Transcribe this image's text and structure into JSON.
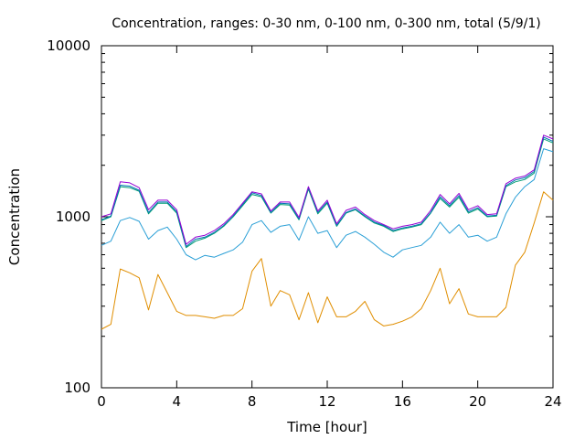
{
  "chart_data": {
    "type": "line",
    "title": "Concentration, ranges: 0-30 nm, 0-100 nm, 0-300 nm, total (5/9/1)",
    "xlabel": "Time [hour]",
    "ylabel": "Concentration",
    "xlim": [
      0,
      24
    ],
    "ylim": [
      100,
      10000
    ],
    "yscale": "log",
    "grid": false,
    "legend": "none",
    "x_ticks": [
      0,
      4,
      8,
      12,
      16,
      20,
      24
    ],
    "x_tick_labels": [
      "0",
      "4",
      "8",
      "12",
      "16",
      "20",
      "24"
    ],
    "y_ticks": [
      100,
      1000,
      10000
    ],
    "y_tick_labels": [
      "100",
      "1000",
      "10000"
    ],
    "x": [
      0,
      0.5,
      1,
      1.5,
      2,
      2.5,
      3,
      3.5,
      4,
      4.5,
      5,
      5.5,
      6,
      6.5,
      7,
      7.5,
      8,
      8.5,
      9,
      9.5,
      10,
      10.5,
      11,
      11.5,
      12,
      12.5,
      13,
      13.5,
      14,
      14.5,
      15,
      15.5,
      16,
      16.5,
      17,
      17.5,
      18,
      18.5,
      19,
      19.5,
      20,
      20.5,
      21,
      21.5,
      22,
      22.5,
      23,
      23.5,
      24
    ],
    "series": [
      {
        "color": "#e08e00",
        "values": [
          220,
          235,
          495,
          470,
          440,
          285,
          460,
          360,
          280,
          265,
          265,
          260,
          255,
          265,
          265,
          290,
          480,
          570,
          300,
          370,
          350,
          250,
          360,
          240,
          340,
          260,
          260,
          280,
          320,
          250,
          230,
          235,
          245,
          260,
          290,
          370,
          500,
          310,
          380,
          270,
          260,
          260,
          260,
          295,
          520,
          620,
          920,
          1400,
          1250
        ]
      },
      {
        "color": "#2a9fd6",
        "values": [
          680,
          720,
          950,
          990,
          940,
          740,
          830,
          870,
          740,
          600,
          560,
          595,
          580,
          610,
          640,
          710,
          900,
          950,
          810,
          880,
          900,
          730,
          1000,
          800,
          830,
          660,
          780,
          820,
          760,
          690,
          620,
          580,
          640,
          660,
          680,
          760,
          930,
          800,
          900,
          760,
          780,
          720,
          760,
          1040,
          1300,
          1500,
          1650,
          2500,
          2400
        ]
      },
      {
        "color": "#009e73",
        "values": [
          950,
          1000,
          1500,
          1480,
          1410,
          1040,
          1200,
          1200,
          1050,
          660,
          720,
          750,
          800,
          880,
          1000,
          1160,
          1350,
          1310,
          1050,
          1180,
          1170,
          960,
          1450,
          1040,
          1200,
          880,
          1050,
          1100,
          1000,
          920,
          880,
          820,
          850,
          870,
          900,
          1050,
          1280,
          1140,
          1300,
          1050,
          1110,
          1000,
          1010,
          1500,
          1600,
          1650,
          1800,
          2850,
          2700
        ]
      },
      {
        "color": "#0072b2",
        "values": [
          960,
          1010,
          1530,
          1510,
          1430,
          1060,
          1220,
          1220,
          1070,
          670,
          740,
          760,
          810,
          890,
          1010,
          1180,
          1380,
          1330,
          1060,
          1200,
          1190,
          970,
          1480,
          1060,
          1220,
          890,
          1060,
          1110,
          1010,
          930,
          890,
          830,
          860,
          880,
          910,
          1060,
          1310,
          1160,
          1330,
          1070,
          1130,
          1010,
          1020,
          1520,
          1640,
          1690,
          1840,
          2920,
          2760
        ]
      },
      {
        "color": "#9400d3",
        "values": [
          1000,
          1040,
          1600,
          1580,
          1480,
          1100,
          1250,
          1250,
          1100,
          690,
          760,
          780,
          830,
          910,
          1030,
          1200,
          1400,
          1360,
          1080,
          1220,
          1220,
          990,
          1500,
          1080,
          1250,
          910,
          1090,
          1140,
          1030,
          950,
          900,
          850,
          880,
          900,
          930,
          1090,
          1350,
          1190,
          1370,
          1100,
          1160,
          1030,
          1040,
          1560,
          1680,
          1730,
          1880,
          3000,
          2850
        ]
      }
    ]
  }
}
